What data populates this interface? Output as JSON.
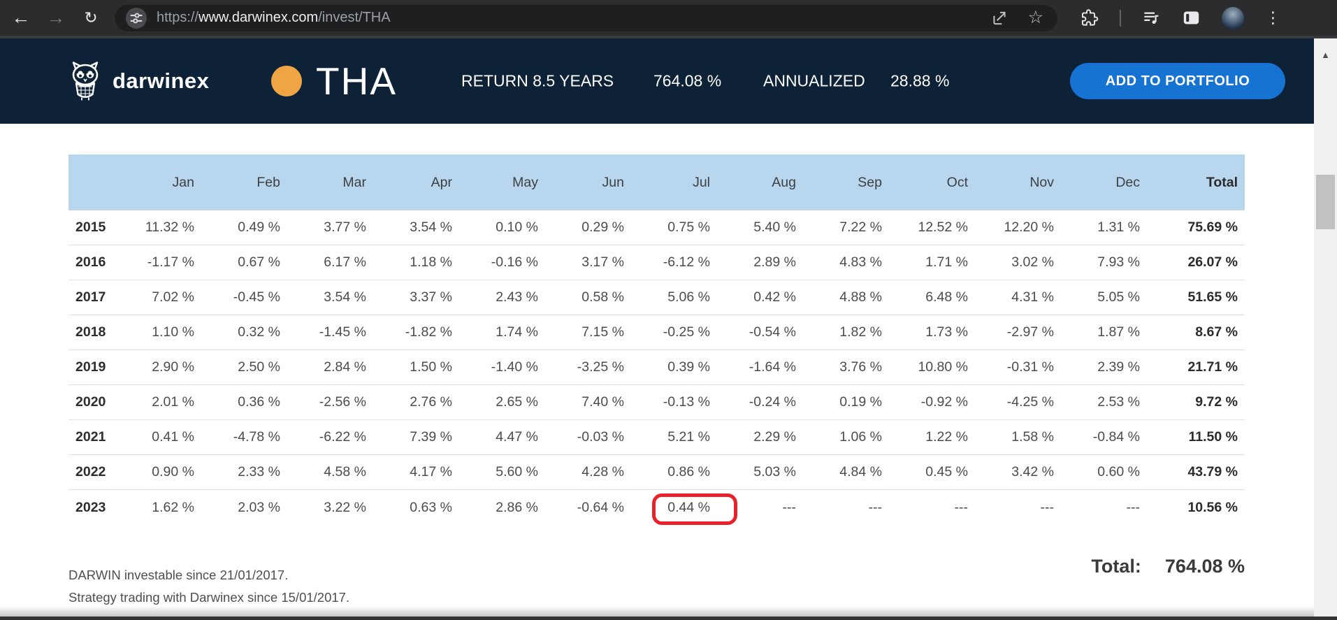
{
  "browser": {
    "url": {
      "scheme": "https://",
      "host": "www.darwinex.com",
      "path": "/invest/THA"
    },
    "icons": {
      "back": "←",
      "forward": "→",
      "reload": "↻",
      "star": "☆",
      "menu": "⋮",
      "scroll_up": "▲"
    }
  },
  "header": {
    "brand": "darwinex",
    "symbol": "THA",
    "return_label": "RETURN 8.5 YEARS",
    "return_value": "764.08 %",
    "annualized_label": "ANNUALIZED",
    "annualized_value": "28.88 %",
    "add_button_label": "ADD TO PORTFOLIO"
  },
  "table": {
    "columns": [
      "",
      "Jan",
      "Feb",
      "Mar",
      "Apr",
      "May",
      "Jun",
      "Jul",
      "Aug",
      "Sep",
      "Oct",
      "Nov",
      "Dec",
      "Total"
    ],
    "rows": [
      {
        "year": "2015",
        "values": [
          "11.32 %",
          "0.49 %",
          "3.77 %",
          "3.54 %",
          "0.10 %",
          "0.29 %",
          "0.75 %",
          "5.40 %",
          "7.22 %",
          "12.52 %",
          "12.20 %",
          "1.31 %"
        ],
        "total": "75.69 %"
      },
      {
        "year": "2016",
        "values": [
          "-1.17 %",
          "0.67 %",
          "6.17 %",
          "1.18 %",
          "-0.16 %",
          "3.17 %",
          "-6.12 %",
          "2.89 %",
          "4.83 %",
          "1.71 %",
          "3.02 %",
          "7.93 %"
        ],
        "total": "26.07 %"
      },
      {
        "year": "2017",
        "values": [
          "7.02 %",
          "-0.45 %",
          "3.54 %",
          "3.37 %",
          "2.43 %",
          "0.58 %",
          "5.06 %",
          "0.42 %",
          "4.88 %",
          "6.48 %",
          "4.31 %",
          "5.05 %"
        ],
        "total": "51.65 %"
      },
      {
        "year": "2018",
        "values": [
          "1.10 %",
          "0.32 %",
          "-1.45 %",
          "-1.82 %",
          "1.74 %",
          "7.15 %",
          "-0.25 %",
          "-0.54 %",
          "1.82 %",
          "1.73 %",
          "-2.97 %",
          "1.87 %"
        ],
        "total": "8.67 %"
      },
      {
        "year": "2019",
        "values": [
          "2.90 %",
          "2.50 %",
          "2.84 %",
          "1.50 %",
          "-1.40 %",
          "-3.25 %",
          "0.39 %",
          "-1.64 %",
          "3.76 %",
          "10.80 %",
          "-0.31 %",
          "2.39 %"
        ],
        "total": "21.71 %"
      },
      {
        "year": "2020",
        "values": [
          "2.01 %",
          "0.36 %",
          "-2.56 %",
          "2.76 %",
          "2.65 %",
          "7.40 %",
          "-0.13 %",
          "-0.24 %",
          "0.19 %",
          "-0.92 %",
          "-4.25 %",
          "2.53 %"
        ],
        "total": "9.72 %"
      },
      {
        "year": "2021",
        "values": [
          "0.41 %",
          "-4.78 %",
          "-6.22 %",
          "7.39 %",
          "4.47 %",
          "-0.03 %",
          "5.21 %",
          "2.29 %",
          "1.06 %",
          "1.22 %",
          "1.58 %",
          "-0.84 %"
        ],
        "total": "11.50 %"
      },
      {
        "year": "2022",
        "values": [
          "0.90 %",
          "2.33 %",
          "4.58 %",
          "4.17 %",
          "5.60 %",
          "4.28 %",
          "0.86 %",
          "5.03 %",
          "4.84 %",
          "0.45 %",
          "3.42 %",
          "0.60 %"
        ],
        "total": "43.79 %"
      },
      {
        "year": "2023",
        "values": [
          "1.62 %",
          "2.03 %",
          "3.22 %",
          "0.63 %",
          "2.86 %",
          "-0.64 %",
          "0.44 %",
          "---",
          "---",
          "---",
          "---",
          "---"
        ],
        "total": "10.56 %"
      }
    ],
    "highlight": {
      "year": "2023",
      "month": "Jul",
      "month_index": 6,
      "value": "0.44 %"
    }
  },
  "footer": {
    "note1": "DARWIN investable since 21/01/2017.",
    "note2": "Strategy trading with Darwinex since 15/01/2017.",
    "total_label": "Total:",
    "total_value": "764.08 %"
  },
  "colors": {
    "header_navy": "#0d2137",
    "accent_orange": "#f0a545",
    "button_blue": "#1673d2",
    "table_header_blue": "#b9d6ef",
    "annotation_red": "#e8212b"
  }
}
